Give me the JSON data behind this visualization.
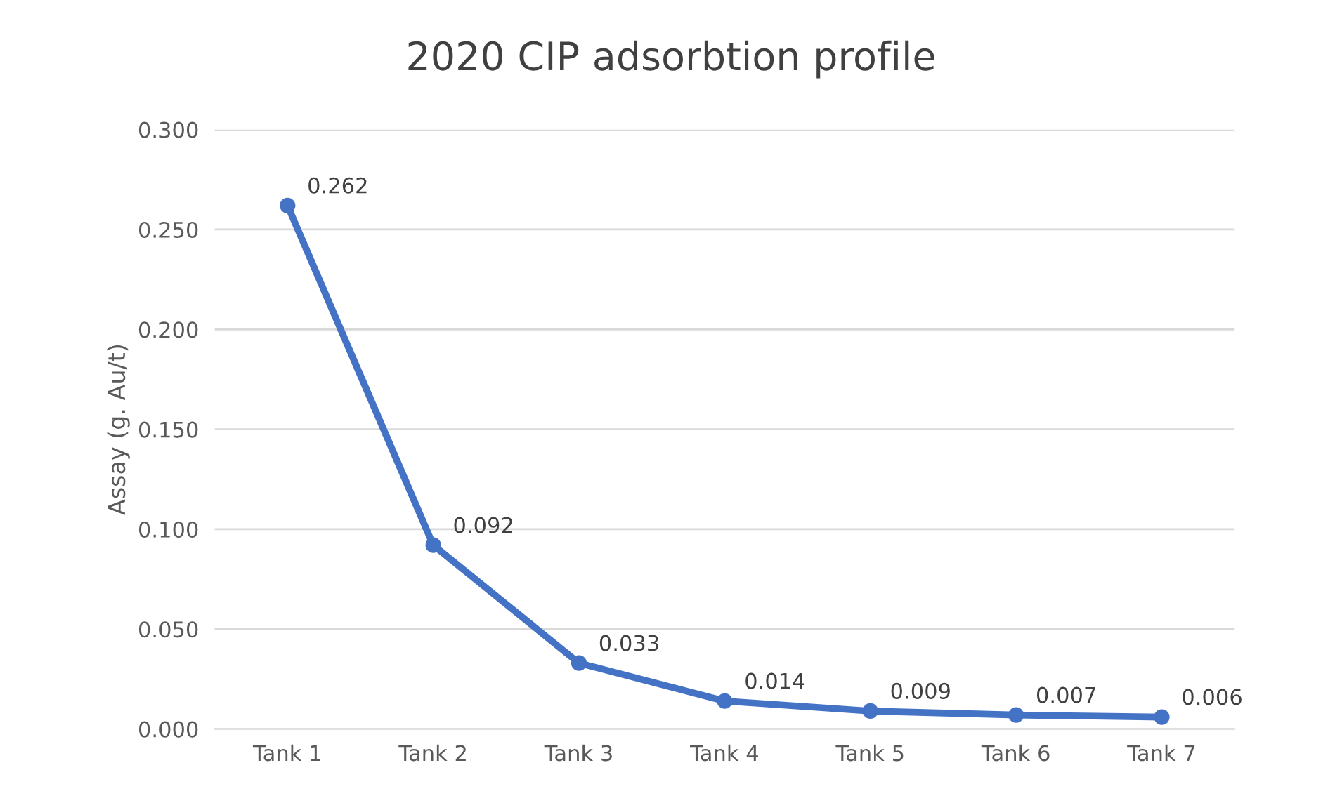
{
  "chart_data": {
    "type": "line",
    "title": "2020 CIP adsorbtion profile",
    "ylabel": "Assay (g. Au/t)",
    "categories": [
      "Tank 1",
      "Tank 2",
      "Tank 3",
      "Tank 4",
      "Tank 5",
      "Tank 6",
      "Tank 7"
    ],
    "series": [
      {
        "color": "#4472c4",
        "values": [
          0.262,
          0.092,
          0.033,
          0.014,
          0.009,
          0.007,
          0.006
        ]
      }
    ],
    "ylim": [
      0,
      0.3
    ],
    "yticks": [
      {
        "value": 0,
        "label": "0.000"
      },
      {
        "value": 0.05,
        "label": "0.050"
      },
      {
        "value": 0.1,
        "label": "0.100"
      },
      {
        "value": 0.15,
        "label": "0.150"
      },
      {
        "value": 0.2,
        "label": "0.200"
      },
      {
        "value": 0.25,
        "label": "0.250"
      },
      {
        "value": 0.3,
        "label": "0.300"
      }
    ],
    "grid": "y",
    "marker": "circle",
    "line_style": "solid",
    "data_labels": true
  }
}
